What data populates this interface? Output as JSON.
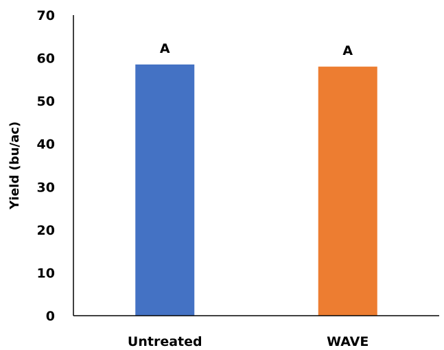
{
  "chart_data": {
    "type": "bar",
    "title": "",
    "xlabel": "",
    "ylabel": "Yield (bu/ac)",
    "categories": [
      "Untreated",
      "WAVE"
    ],
    "values": [
      58.5,
      58.0
    ],
    "data_labels": [
      "A",
      "A"
    ],
    "colors": [
      "#4472C4",
      "#ED7D31"
    ],
    "ylim": [
      0,
      70
    ],
    "yticks": [
      0,
      10,
      20,
      30,
      40,
      50,
      60,
      70
    ],
    "grid": false,
    "legend": "none"
  }
}
